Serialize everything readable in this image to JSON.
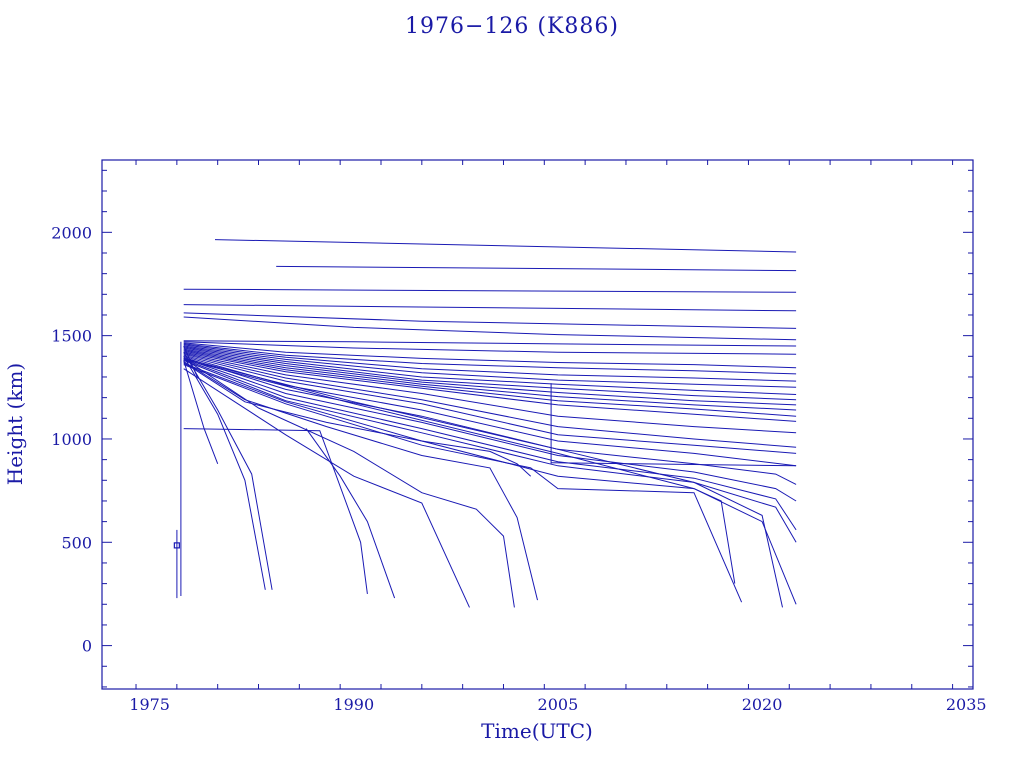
{
  "chart_data": {
    "type": "line",
    "title": "1976−126 (K886)",
    "xlabel": "Time(UTC)",
    "ylabel": "Height (km)",
    "xlim": [
      1971.5,
      2035.5
    ],
    "ylim": [
      -210,
      2350
    ],
    "xticks": [
      1975,
      1990,
      2005,
      2020,
      2035
    ],
    "yticks": [
      0,
      500,
      1000,
      1500,
      2000
    ],
    "line_color": "#1a1ab4",
    "frame_color": "#1a1aa6",
    "series": [
      {
        "x": [
          1979.8,
          2022.5
        ],
        "y": [
          1965,
          1905
        ]
      },
      {
        "x": [
          1984.3,
          2022.5
        ],
        "y": [
          1835,
          1815
        ]
      },
      {
        "x": [
          1977.5,
          2022.5
        ],
        "y": [
          1725,
          1710
        ]
      },
      {
        "x": [
          1977.5,
          2022.5
        ],
        "y": [
          1650,
          1620
        ]
      },
      {
        "x": [
          1977.5,
          1995,
          2022.5
        ],
        "y": [
          1610,
          1570,
          1535
        ]
      },
      {
        "x": [
          1977.5,
          1990,
          2005,
          2022.5
        ],
        "y": [
          1590,
          1540,
          1505,
          1480
        ]
      },
      {
        "x": [
          1977.5,
          1990,
          2005,
          2022.5
        ],
        "y": [
          1475,
          1470,
          1460,
          1450
        ]
      },
      {
        "x": [
          1977.5,
          1990,
          2005,
          2022.5
        ],
        "y": [
          1470,
          1440,
          1420,
          1410
        ]
      },
      {
        "x": [
          1977.5,
          1985,
          1995,
          2005,
          2015,
          2022.5
        ],
        "y": [
          1465,
          1420,
          1390,
          1370,
          1360,
          1345
        ]
      },
      {
        "x": [
          1977.5,
          1985,
          1995,
          2005,
          2015,
          2022.5
        ],
        "y": [
          1460,
          1405,
          1365,
          1345,
          1330,
          1315
        ]
      },
      {
        "x": [
          1977.5,
          1985,
          1995,
          2005,
          2015,
          2022.5
        ],
        "y": [
          1455,
          1395,
          1340,
          1310,
          1295,
          1280
        ]
      },
      {
        "x": [
          1977.5,
          1985,
          1995,
          2005,
          2015,
          2022.5
        ],
        "y": [
          1450,
          1385,
          1320,
          1285,
          1265,
          1250
        ]
      },
      {
        "x": [
          1977.5,
          1985,
          1995,
          2005,
          2015,
          2022.5
        ],
        "y": [
          1445,
          1375,
          1300,
          1265,
          1235,
          1215
        ]
      },
      {
        "x": [
          1977.5,
          1985,
          1995,
          2005,
          2015,
          2022.5
        ],
        "y": [
          1440,
          1365,
          1285,
          1245,
          1210,
          1190
        ]
      },
      {
        "x": [
          1977.5,
          1985,
          1995,
          2005,
          2015,
          2022.5
        ],
        "y": [
          1435,
          1355,
          1275,
          1225,
          1185,
          1165
        ]
      },
      {
        "x": [
          1977.5,
          1985,
          1995,
          2005,
          2015,
          2022.5
        ],
        "y": [
          1430,
          1345,
          1265,
          1205,
          1165,
          1140
        ]
      },
      {
        "x": [
          1977.5,
          1985,
          1995,
          2005,
          2015,
          2022.5
        ],
        "y": [
          1425,
          1335,
          1255,
          1185,
          1145,
          1110
        ]
      },
      {
        "x": [
          1977.5,
          1985,
          1995,
          2005,
          2015,
          2022.5
        ],
        "y": [
          1420,
          1325,
          1245,
          1165,
          1120,
          1085
        ]
      },
      {
        "x": [
          1977.5,
          1985,
          1995,
          2005,
          2015,
          2022.5
        ],
        "y": [
          1415,
          1310,
          1220,
          1110,
          1060,
          1030
        ]
      },
      {
        "x": [
          1977.5,
          1985,
          1995,
          2005,
          2015,
          2022.5
        ],
        "y": [
          1410,
          1295,
          1190,
          1060,
          1000,
          960
        ]
      },
      {
        "x": [
          1977.5,
          1985,
          1995,
          2005,
          2015,
          2022.5
        ],
        "y": [
          1405,
          1280,
          1170,
          1020,
          970,
          930
        ]
      },
      {
        "x": [
          1977.5,
          1985,
          1995,
          2005,
          2015,
          2022.5
        ],
        "y": [
          1400,
          1260,
          1140,
          990,
          930,
          870
        ]
      },
      {
        "x": [
          1977.5,
          1985,
          1995,
          2005,
          2015,
          2021,
          2022.5
        ],
        "y": [
          1395,
          1240,
          1110,
          950,
          880,
          830,
          780
        ]
      },
      {
        "x": [
          1977.5,
          1985,
          1995,
          2005,
          2015,
          2021,
          2022.5
        ],
        "y": [
          1390,
          1220,
          1080,
          920,
          840,
          760,
          700
        ]
      },
      {
        "x": [
          1977.5,
          1985,
          1995,
          2005,
          2015,
          2021,
          2022.5
        ],
        "y": [
          1385,
          1200,
          1050,
          890,
          810,
          710,
          560
        ]
      },
      {
        "x": [
          1977.5,
          1985,
          1995,
          2005,
          2015,
          2021,
          2022.5
        ],
        "y": [
          1380,
          1185,
          1030,
          870,
          790,
          670,
          500
        ]
      },
      {
        "x": [
          1977.5,
          1982,
          1988,
          1995,
          2000,
          2002,
          2003
        ],
        "y": [
          1370,
          1180,
          1080,
          990,
          940,
          880,
          820
        ]
      },
      {
        "x": [
          1977.5,
          1982,
          1988,
          1995,
          2000,
          2002,
          2003.5
        ],
        "y": [
          1375,
          1190,
          1060,
          920,
          860,
          620,
          220
        ]
      },
      {
        "x": [
          1977.5,
          1983,
          1990,
          1995,
          1999,
          2001,
          2001.8
        ],
        "y": [
          1390,
          1150,
          940,
          740,
          660,
          530,
          185
        ]
      },
      {
        "x": [
          1977.5,
          1985,
          1995,
          2003,
          2005,
          2015,
          2018.5
        ],
        "y": [
          1360,
          1170,
          970,
          860,
          760,
          740,
          210
        ]
      },
      {
        "x": [
          1977.5,
          1985,
          1995,
          2005,
          2015,
          2017,
          2018
        ],
        "y": [
          1365,
          1180,
          990,
          820,
          760,
          700,
          300
        ]
      },
      {
        "x": [
          1977.5,
          1990,
          2005,
          2015,
          2020,
          2021.5
        ],
        "y": [
          1390,
          1180,
          950,
          790,
          630,
          185
        ]
      },
      {
        "x": [
          1977.5,
          1990,
          2005,
          2015,
          2020,
          2022.5
        ],
        "y": [
          1385,
          1170,
          930,
          760,
          600,
          200
        ]
      },
      {
        "x": [
          1977.5,
          1985,
          1990,
          1995,
          1998.5
        ],
        "y": [
          1340,
          1020,
          820,
          690,
          185
        ]
      },
      {
        "x": [
          1977.5,
          1980,
          1982,
          1983.5
        ],
        "y": [
          1400,
          1120,
          800,
          270
        ]
      },
      {
        "x": [
          1977.5,
          1980,
          1982.5,
          1984
        ],
        "y": [
          1420,
          1140,
          830,
          270
        ]
      },
      {
        "x": [
          1977.5,
          1979,
          1980
        ],
        "y": [
          1380,
          1050,
          880
        ]
      },
      {
        "x": [
          1977.5,
          1978.5
        ],
        "y": [
          1450,
          1300
        ]
      },
      {
        "x": [
          1977.5,
          1987.5,
          1990.5,
          1991
        ],
        "y": [
          1050,
          1040,
          500,
          250
        ]
      },
      {
        "x": [
          1986.5,
          1989,
          1991,
          1993
        ],
        "y": [
          1050,
          820,
          600,
          230
        ]
      },
      {
        "x": [
          1977.3,
          1977.3
        ],
        "y": [
          1470,
          240
        ]
      },
      {
        "x": [
          1977.0,
          1977.0
        ],
        "y": [
          560,
          230
        ]
      },
      {
        "x": [
          2004.5,
          2004.5
        ],
        "y": [
          1270,
          880
        ]
      },
      {
        "x": [
          2004.5,
          2022.5
        ],
        "y": [
          885,
          870
        ]
      }
    ],
    "markers": [
      {
        "x": 1977.0,
        "y": 485
      }
    ]
  }
}
